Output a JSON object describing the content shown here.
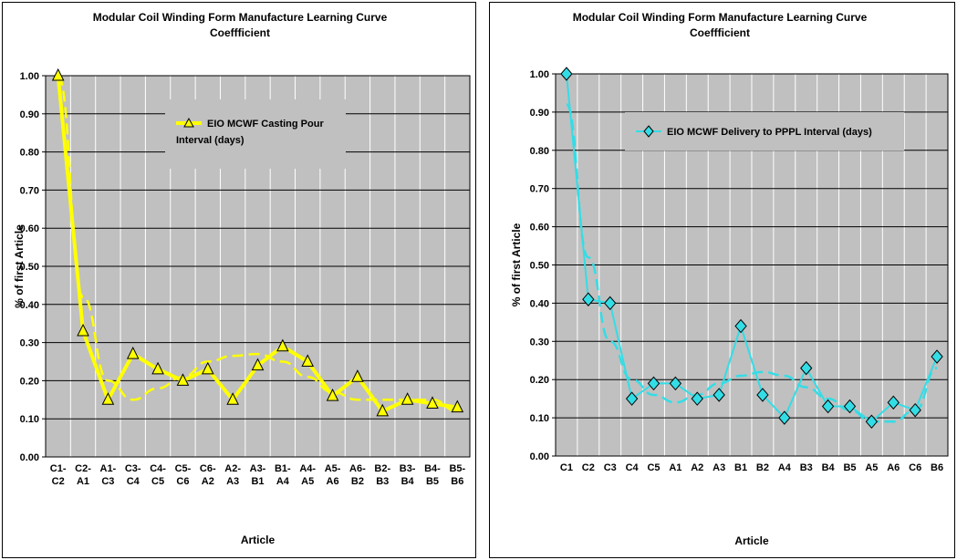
{
  "chart_data": [
    {
      "type": "line",
      "title_line1": "Modular Coil Winding Form Manufacture Learning Curve",
      "title_line2": "Coeffficient",
      "xlabel": "Article",
      "ylabel": "% of first Article",
      "ylim": [
        0,
        1
      ],
      "yticks": [
        "0.00",
        "0.10",
        "0.20",
        "0.30",
        "0.40",
        "0.50",
        "0.60",
        "0.70",
        "0.80",
        "0.90",
        "1.00"
      ],
      "categories": [
        [
          "C1-",
          "C2"
        ],
        [
          "C2-",
          "A1"
        ],
        [
          "A1-",
          "C3"
        ],
        [
          "C3-",
          "C4"
        ],
        [
          "C4-",
          "C5"
        ],
        [
          "C5-",
          "C6"
        ],
        [
          "C6-",
          "A2"
        ],
        [
          "A2-",
          "A3"
        ],
        [
          "A3-",
          "B1"
        ],
        [
          "B1-",
          "A4"
        ],
        [
          "A4-",
          "A5"
        ],
        [
          "A5-",
          "A6"
        ],
        [
          "A6-",
          "B2"
        ],
        [
          "B2-",
          "B3"
        ],
        [
          "B3-",
          "B4"
        ],
        [
          "B4-",
          "B5"
        ],
        [
          "B5-",
          "B6"
        ]
      ],
      "grid": "horizontal",
      "legend_position": "top-center",
      "series": [
        {
          "name": "EIO MCWF Casting Pour Interval (days)",
          "legend_line1": "EIO MCWF Casting Pour",
          "legend_line2": "Interval (days)",
          "color": "#ffff00",
          "marker": "triangle",
          "values": [
            1.0,
            0.33,
            0.15,
            0.27,
            0.23,
            0.2,
            0.23,
            0.15,
            0.24,
            0.29,
            0.25,
            0.16,
            0.21,
            0.12,
            0.15,
            0.14,
            0.13
          ]
        }
      ],
      "trendline": {
        "color": "#ffff00",
        "style": "dashed",
        "values": [
          1.0,
          0.42,
          0.2,
          0.15,
          0.18,
          0.21,
          0.25,
          0.265,
          0.27,
          0.25,
          0.21,
          0.17,
          0.15,
          0.15,
          0.15,
          0.15,
          0.12
        ]
      }
    },
    {
      "type": "line",
      "title_line1": "Modular Coil Winding Form Manufacture Learning Curve",
      "title_line2": "Coeffficient",
      "xlabel": "Article",
      "ylabel": "% of first Article",
      "ylim": [
        0,
        1
      ],
      "yticks": [
        "0.00",
        "0.10",
        "0.20",
        "0.30",
        "0.40",
        "0.50",
        "0.60",
        "0.70",
        "0.80",
        "0.90",
        "1.00"
      ],
      "categories": [
        [
          "C1"
        ],
        [
          "C2"
        ],
        [
          "C3"
        ],
        [
          "C4"
        ],
        [
          "C5"
        ],
        [
          "A1"
        ],
        [
          "A2"
        ],
        [
          "A3"
        ],
        [
          "B1"
        ],
        [
          "B2"
        ],
        [
          "A4"
        ],
        [
          "B3"
        ],
        [
          "B4"
        ],
        [
          "B5"
        ],
        [
          "A5"
        ],
        [
          "A6"
        ],
        [
          "C6"
        ],
        [
          "B6"
        ]
      ],
      "grid": "horizontal",
      "legend_position": "top-center",
      "series": [
        {
          "name": "EIO MCWF Delivery to PPPL Interval (days)",
          "legend_line1": "EIO MCWF Delivery to PPPL Interval (days)",
          "legend_line2": "",
          "color": "#33dde6",
          "marker": "diamond",
          "values": [
            1.0,
            0.41,
            0.4,
            0.15,
            0.19,
            0.19,
            0.15,
            0.16,
            0.34,
            0.16,
            0.1,
            0.23,
            0.13,
            0.13,
            0.09,
            0.14,
            0.12,
            0.26
          ]
        }
      ],
      "trendline": {
        "color": "#33dde6",
        "style": "dashed",
        "values": [
          0.92,
          0.52,
          0.3,
          0.2,
          0.16,
          0.14,
          0.16,
          0.19,
          0.21,
          0.22,
          0.21,
          0.18,
          0.15,
          0.12,
          0.09,
          0.09,
          0.12,
          0.23
        ]
      }
    }
  ]
}
